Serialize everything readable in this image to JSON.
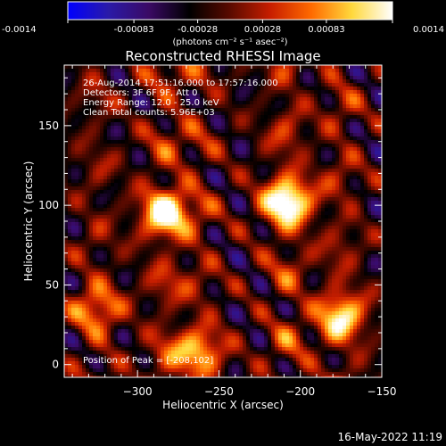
{
  "chart_data": {
    "type": "heatmap",
    "title": "Reconstructed RHESSI Image",
    "xlabel": "Heliocentric X (arcsec)",
    "ylabel": "Heliocentric Y (arcsec)",
    "xlim": [
      -345,
      -150
    ],
    "ylim": [
      -8,
      188
    ],
    "x_ticks": [
      -300,
      -250,
      -200,
      -150
    ],
    "y_ticks": [
      0,
      50,
      100,
      150
    ],
    "colorbar": {
      "vmin": -0.0014,
      "vmax": 0.0014,
      "tick_values": [
        -0.0014,
        -0.00083,
        -0.00028,
        0.00028,
        0.00083,
        0.0014
      ],
      "tick_labels": [
        "-0.0014",
        "-0.00083",
        "-0.00028",
        "0.00028",
        "0.00083",
        "0.0014"
      ],
      "units_label": "(photons cm⁻² s⁻¹ asec⁻²)",
      "colormap_stops": [
        "#0000ff",
        "#2a1aa8",
        "#3a0a64",
        "#000000",
        "#5a0a00",
        "#c81e00",
        "#ff6a00",
        "#ffd83c",
        "#ffffff"
      ]
    },
    "annotations": [
      "26-Aug-2014 17:51:16.000 to 17:57:16.000",
      "Detectors: 3F 6F 9F, Att 0",
      "Energy Range: 12.0 - 25.0 keV",
      "Clean     Total counts: 5.96E+03"
    ],
    "peak_label": "Position of Peak = [-208,102]",
    "sources": [
      {
        "x": -208,
        "y": 102,
        "value": 0.0014
      },
      {
        "x": -283,
        "y": 95,
        "value": 0.00125
      },
      {
        "x": -175,
        "y": 30,
        "value": 0.0011
      },
      {
        "x": -262,
        "y": 8,
        "value": 0.0009
      },
      {
        "x": -325,
        "y": 35,
        "value": 0.0008
      }
    ]
  },
  "footer_timestamp": "16-May-2022 11:19"
}
